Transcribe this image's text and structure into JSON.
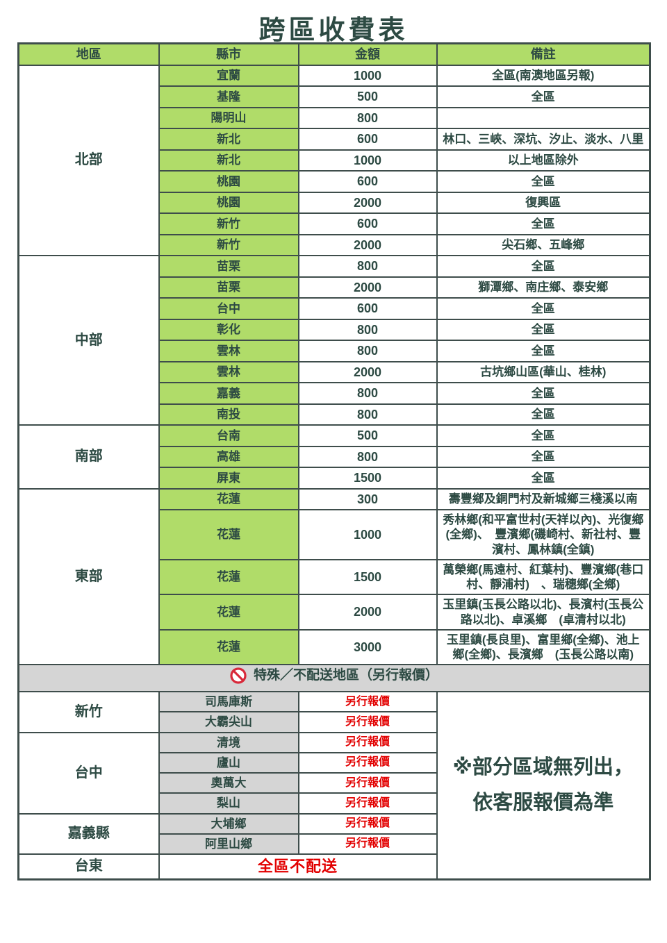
{
  "title": "跨區收費表",
  "colors": {
    "green": "#b0dc69",
    "gray": "#d5d5d5",
    "border": "#3e4d4b",
    "text": "#2d4a43",
    "red": "#e20000"
  },
  "table": {
    "headers": [
      "地區",
      "縣市",
      "金額",
      "備註"
    ],
    "main_sections": [
      {
        "region": "北部",
        "rows": [
          {
            "county": "宜蘭",
            "amount": "1000",
            "note": "全區(南澳地區另報)"
          },
          {
            "county": "基隆",
            "amount": "500",
            "note": "全區"
          },
          {
            "county": "陽明山",
            "amount": "800",
            "note": ""
          },
          {
            "county": "新北",
            "amount": "600",
            "note": "林口、三峽、深坑、汐止、淡水、八里"
          },
          {
            "county": "新北",
            "amount": "1000",
            "note": "以上地區除外"
          },
          {
            "county": "桃園",
            "amount": "600",
            "note": "全區"
          },
          {
            "county": "桃園",
            "amount": "2000",
            "note": "復興區"
          },
          {
            "county": "新竹",
            "amount": "600",
            "note": "全區"
          },
          {
            "county": "新竹",
            "amount": "2000",
            "note": "尖石鄉、五峰鄉"
          }
        ]
      },
      {
        "region": "中部",
        "rows": [
          {
            "county": "苗栗",
            "amount": "800",
            "note": "全區"
          },
          {
            "county": "苗栗",
            "amount": "2000",
            "note": "獅潭鄉、南庄鄉、泰安鄉"
          },
          {
            "county": "台中",
            "amount": "600",
            "note": "全區"
          },
          {
            "county": "彰化",
            "amount": "800",
            "note": "全區"
          },
          {
            "county": "雲林",
            "amount": "800",
            "note": "全區"
          },
          {
            "county": "雲林",
            "amount": "2000",
            "note": "古坑鄉山區(華山、桂林)"
          },
          {
            "county": "嘉義",
            "amount": "800",
            "note": "全區"
          },
          {
            "county": "南投",
            "amount": "800",
            "note": "全區"
          }
        ]
      },
      {
        "region": "南部",
        "rows": [
          {
            "county": "台南",
            "amount": "500",
            "note": "全區"
          },
          {
            "county": "高雄",
            "amount": "800",
            "note": "全區"
          },
          {
            "county": "屏東",
            "amount": "1500",
            "note": "全區"
          }
        ]
      },
      {
        "region": "東部",
        "rows": [
          {
            "county": "花蓮",
            "amount": "300",
            "note": "壽豐鄉及銅門村及新城鄉三棧溪以南"
          },
          {
            "county": "花蓮",
            "amount": "1000",
            "note": "秀林鄉(和平富世村(天祥以內)、光復鄉(全鄉)、　豐濱鄉(磯崎村、新社村、豐濱村、鳳林鎮(全鎮)"
          },
          {
            "county": "花蓮",
            "amount": "1500",
            "note": "萬榮鄉(馬遠村、紅葉村)、豐濱鄉(巷口村、靜浦村)　、瑞穗鄉(全鄉)"
          },
          {
            "county": "花蓮",
            "amount": "2000",
            "note": "玉里鎮(玉長公路以北)、長濱村(玉長公路以北)、卓溪鄉　(卓清村以北)"
          },
          {
            "county": "花蓮",
            "amount": "3000",
            "note": "玉里鎮(長良里)、富里鄉(全鄉)、池上鄉(全鄉)、長濱鄉　(玉長公路以南)"
          }
        ]
      }
    ],
    "special": {
      "banner_label": "特殊／不配送地區（另行報價）",
      "banner_icon": "no-entry-icon",
      "sections": [
        {
          "region": "新竹",
          "rows": [
            {
              "county": "司馬庫斯",
              "value": "另行報價"
            },
            {
              "county": "大霸尖山",
              "value": "另行報價"
            }
          ]
        },
        {
          "region": "台中",
          "rows": [
            {
              "county": "清境",
              "value": "另行報價"
            },
            {
              "county": "廬山",
              "value": "另行報價"
            },
            {
              "county": "奧萬大",
              "value": "另行報價"
            },
            {
              "county": "梨山",
              "value": "另行報價"
            }
          ]
        },
        {
          "region": "嘉義縣",
          "rows": [
            {
              "county": "大埔鄉",
              "value": "另行報價"
            },
            {
              "county": "阿里山鄉",
              "value": "另行報價"
            }
          ]
        }
      ],
      "note_lines": [
        "※部分區域無列出，",
        "依客服報價為準"
      ],
      "full_row": {
        "region": "台東",
        "value": "全區不配送"
      }
    }
  }
}
